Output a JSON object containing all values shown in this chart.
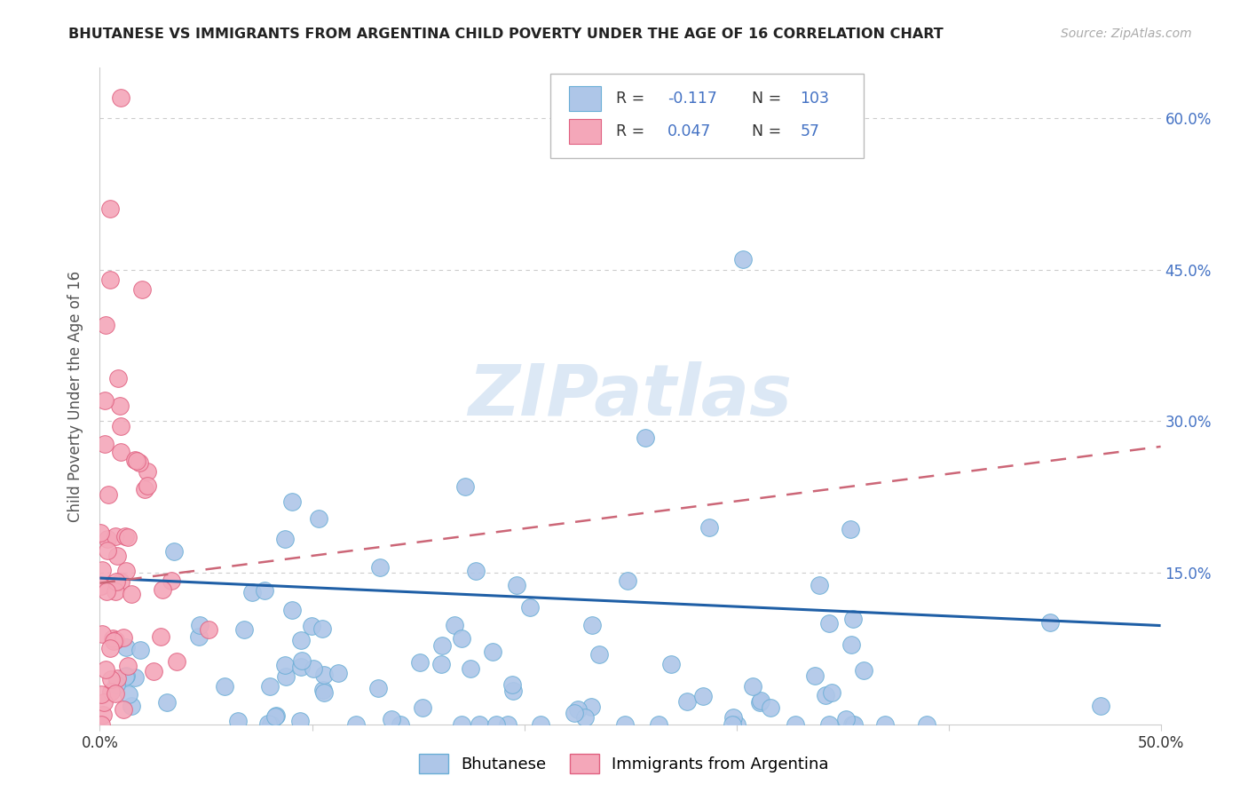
{
  "title": "BHUTANESE VS IMMIGRANTS FROM ARGENTINA CHILD POVERTY UNDER THE AGE OF 16 CORRELATION CHART",
  "source": "Source: ZipAtlas.com",
  "ylabel": "Child Poverty Under the Age of 16",
  "x_range": [
    0.0,
    0.5
  ],
  "y_range": [
    0.0,
    0.65
  ],
  "y_ticks": [
    0.0,
    0.15,
    0.3,
    0.45,
    0.6
  ],
  "right_tick_labels": [
    "",
    "15.0%",
    "30.0%",
    "45.0%",
    "60.0%"
  ],
  "bhutanese_color": "#aec6e8",
  "bhutanese_edge": "#6aaed6",
  "argentina_color": "#f4a7b9",
  "argentina_edge": "#e06080",
  "trend_blue_color": "#1f5fa6",
  "trend_pink_color": "#cc6677",
  "watermark": "ZIPatlas",
  "watermark_color": "#dce8f5",
  "grid_color": "#cccccc",
  "blue_trend_start_y": 0.145,
  "blue_trend_end_y": 0.098,
  "pink_trend_start_y": 0.14,
  "pink_trend_end_y": 0.275,
  "legend_R1": "-0.117",
  "legend_N1": "103",
  "legend_R2": "0.047",
  "legend_N2": "57",
  "bottom_label1": "Bhutanese",
  "bottom_label2": "Immigrants from Argentina"
}
